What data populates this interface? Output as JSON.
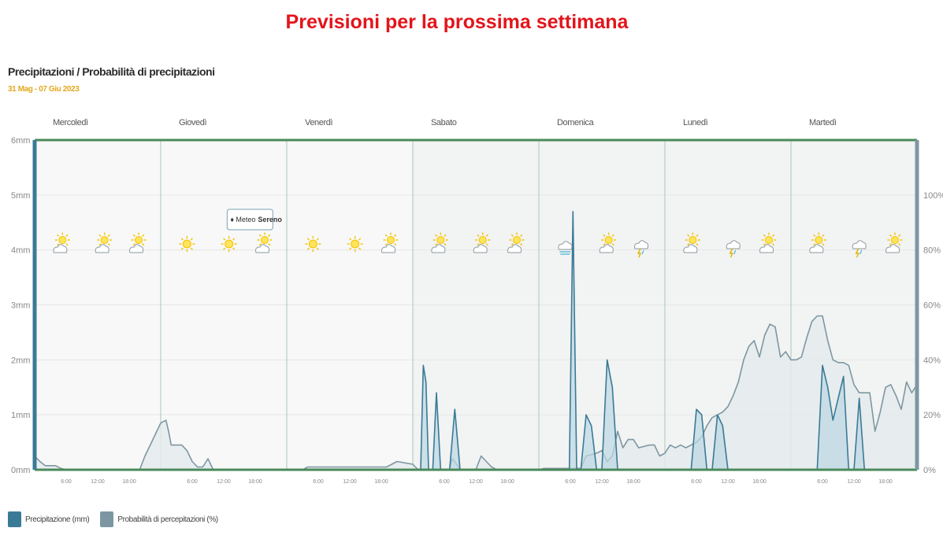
{
  "page": {
    "title": "Previsioni per la prossima settimana"
  },
  "chart_data": {
    "type": "line",
    "subtitle": "Precipitazioni / Probabilità di precipitazioni",
    "date_range": "31 Mag - 07 Giu 2023",
    "days": [
      "Mercoledì",
      "Giovedì",
      "Venerdì",
      "Sabato",
      "Domenica",
      "Lunedì",
      "Martedì"
    ],
    "hour_ticks": [
      "6:00",
      "12:00",
      "18:00"
    ],
    "x_range_hours": [
      0,
      168
    ],
    "y_left": {
      "label": "Precipitazione (mm)",
      "min": 0,
      "max": 6,
      "ticks": [
        "0mm",
        "1mm",
        "2mm",
        "3mm",
        "4mm",
        "5mm",
        "6mm"
      ]
    },
    "y_right": {
      "label": "Probabilità di percepitazioni (%)",
      "min": 0,
      "max": 120,
      "ticks": [
        "0%",
        "20%",
        "40%",
        "60%",
        "80%",
        "100%"
      ]
    },
    "grid": true,
    "legend": "bottom-left",
    "tooltip": {
      "prefix": "Meteo",
      "value": "Sereno",
      "hour": 41
    },
    "colors": {
      "precipitation": "#3a7a96",
      "probability": "#7d97a2",
      "frame": "#4a8a5a",
      "title": "#e3141b",
      "date": "#e4a81f"
    },
    "series": [
      {
        "name": "Probabilità di percepitazioni (%)",
        "axis": "right",
        "points": [
          [
            0,
            5
          ],
          [
            1,
            3
          ],
          [
            2,
            1.5
          ],
          [
            4,
            1.5
          ],
          [
            5,
            0.5
          ],
          [
            6,
            0
          ],
          [
            20,
            0
          ],
          [
            21,
            5
          ],
          [
            22,
            9
          ],
          [
            23,
            13
          ],
          [
            24,
            17
          ],
          [
            25,
            18
          ],
          [
            25.5,
            14
          ],
          [
            26,
            9
          ],
          [
            27,
            9
          ],
          [
            28,
            9
          ],
          [
            29,
            7
          ],
          [
            30,
            3
          ],
          [
            31,
            1
          ],
          [
            32,
            1
          ],
          [
            33,
            4
          ],
          [
            34,
            0
          ],
          [
            48,
            0
          ],
          [
            51,
            0
          ],
          [
            52,
            1
          ],
          [
            54,
            1
          ],
          [
            66,
            1
          ],
          [
            67,
            1
          ],
          [
            69,
            3
          ],
          [
            72,
            2
          ],
          [
            73,
            0
          ],
          [
            79,
            0
          ],
          [
            79.5,
            4
          ],
          [
            80,
            3
          ],
          [
            81,
            0
          ],
          [
            84,
            0
          ],
          [
            85,
            5
          ],
          [
            86,
            3
          ],
          [
            87,
            1
          ],
          [
            88,
            0
          ],
          [
            96,
            0
          ],
          [
            97,
            0.5
          ],
          [
            98,
            0.5
          ],
          [
            104,
            0.5
          ],
          [
            105,
            5
          ],
          [
            107,
            6
          ],
          [
            108,
            7
          ],
          [
            109,
            3
          ],
          [
            110,
            5
          ],
          [
            111,
            14
          ],
          [
            112,
            8
          ],
          [
            113,
            11
          ],
          [
            114,
            11
          ],
          [
            115,
            8
          ],
          [
            117,
            9
          ],
          [
            118,
            9
          ],
          [
            119,
            5
          ],
          [
            120,
            6
          ],
          [
            121,
            9
          ],
          [
            122,
            8
          ],
          [
            123,
            9
          ],
          [
            124,
            8
          ],
          [
            125,
            9
          ],
          [
            126,
            10
          ],
          [
            127,
            12
          ],
          [
            128,
            16
          ],
          [
            129,
            19
          ],
          [
            130,
            20
          ],
          [
            131,
            21
          ],
          [
            132,
            23
          ],
          [
            133,
            27
          ],
          [
            134,
            32
          ],
          [
            135,
            40
          ],
          [
            136,
            45
          ],
          [
            137,
            47
          ],
          [
            138,
            41
          ],
          [
            139,
            49
          ],
          [
            140,
            53
          ],
          [
            141,
            52
          ],
          [
            142,
            41
          ],
          [
            143,
            43
          ],
          [
            144,
            40
          ],
          [
            145,
            40
          ],
          [
            146,
            41
          ],
          [
            147,
            48
          ],
          [
            148,
            54
          ],
          [
            149,
            56
          ],
          [
            150,
            56
          ],
          [
            151,
            47
          ],
          [
            152,
            40
          ],
          [
            153,
            39
          ],
          [
            154,
            39
          ],
          [
            155,
            38
          ],
          [
            156,
            31
          ],
          [
            157,
            28
          ],
          [
            158,
            28
          ],
          [
            159,
            28
          ],
          [
            160,
            14
          ],
          [
            161,
            21
          ],
          [
            162,
            30
          ],
          [
            163,
            31
          ],
          [
            164,
            27
          ],
          [
            165,
            22
          ],
          [
            166,
            32
          ],
          [
            167,
            28
          ],
          [
            168,
            31
          ]
        ]
      },
      {
        "name": "Precipitazione (mm)",
        "axis": "left",
        "points": [
          [
            0,
            0
          ],
          [
            60,
            0
          ],
          [
            73.5,
            0
          ],
          [
            74,
            1.9
          ],
          [
            74.5,
            1.6
          ],
          [
            75,
            0
          ],
          [
            75.8,
            0
          ],
          [
            76.5,
            1.4
          ],
          [
            77.3,
            0
          ],
          [
            79,
            0
          ],
          [
            80,
            1.1
          ],
          [
            81,
            0
          ],
          [
            101,
            0
          ],
          [
            101.8,
            0
          ],
          [
            102.5,
            4.7
          ],
          [
            103.2,
            0
          ],
          [
            104,
            0
          ],
          [
            105,
            1
          ],
          [
            106,
            0.8
          ],
          [
            107,
            0
          ],
          [
            108,
            0
          ],
          [
            109,
            2
          ],
          [
            110,
            1.5
          ],
          [
            111,
            0
          ],
          [
            125,
            0
          ],
          [
            126,
            1.1
          ],
          [
            127,
            1
          ],
          [
            128,
            0
          ],
          [
            129,
            0
          ],
          [
            130,
            1
          ],
          [
            131,
            0.8
          ],
          [
            132,
            0
          ],
          [
            149,
            0
          ],
          [
            150,
            1.9
          ],
          [
            151,
            1.5
          ],
          [
            152,
            0.9
          ],
          [
            153,
            1.3
          ],
          [
            154,
            1.7
          ],
          [
            155,
            0
          ],
          [
            156,
            0
          ],
          [
            157,
            1.3
          ],
          [
            158,
            0
          ],
          [
            168,
            0
          ]
        ]
      }
    ],
    "weather_icons": [
      {
        "hour": 5,
        "icon": "sun-cloud-icon"
      },
      {
        "hour": 13,
        "icon": "sun-cloud-icon"
      },
      {
        "hour": 19.5,
        "icon": "sun-cloud-icon"
      },
      {
        "hour": 29,
        "icon": "sun-icon"
      },
      {
        "hour": 37,
        "icon": "sun-icon"
      },
      {
        "hour": 43.5,
        "icon": "sun-cloud-icon"
      },
      {
        "hour": 53,
        "icon": "sun-icon"
      },
      {
        "hour": 61,
        "icon": "sun-icon"
      },
      {
        "hour": 67.5,
        "icon": "sun-cloud-icon"
      },
      {
        "hour": 77,
        "icon": "sun-cloud-icon"
      },
      {
        "hour": 85,
        "icon": "sun-cloud-icon"
      },
      {
        "hour": 91.5,
        "icon": "sun-cloud-icon"
      },
      {
        "hour": 101,
        "icon": "cloud-fog-icon"
      },
      {
        "hour": 109,
        "icon": "sun-cloud-icon"
      },
      {
        "hour": 115.5,
        "icon": "cloud-storm-icon"
      },
      {
        "hour": 125,
        "icon": "sun-cloud-icon"
      },
      {
        "hour": 133,
        "icon": "cloud-storm-icon"
      },
      {
        "hour": 139.5,
        "icon": "sun-cloud-icon"
      },
      {
        "hour": 149,
        "icon": "sun-cloud-icon"
      },
      {
        "hour": 157,
        "icon": "cloud-storm-icon"
      },
      {
        "hour": 163.5,
        "icon": "sun-cloud-icon"
      }
    ]
  }
}
